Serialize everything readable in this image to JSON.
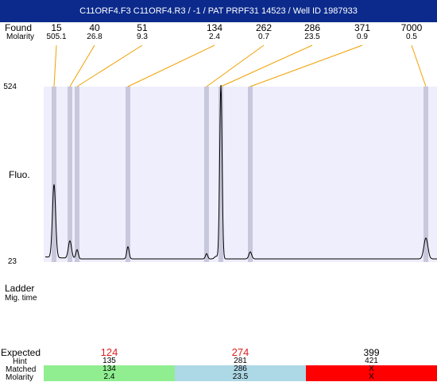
{
  "title": "C11ORF4.F3  C11ORF4.R3 / -1 / PAT PRPF31 14523 / Well ID 1987933",
  "found_label": "Found",
  "molarity_label": "Molarity",
  "fluo_label": "Fluo.",
  "ladder_label": "Ladder",
  "mig_time_label": "Mig. time",
  "expected_label": "Expected",
  "hint_label": "Hint",
  "matched_label": "Matched",
  "molarity_bottom_label": "Molarity",
  "colors": {
    "title_bg": "#0b2a8c",
    "plot_bg": "#eeeefc",
    "peak_band": "#c8c8dc",
    "leader": "#f0a000",
    "green": "#90ee90",
    "blue": "#add8e6",
    "red": "#ff0000"
  },
  "chart_data": {
    "type": "line",
    "ylabel": "Fluo.",
    "ylim": [
      23,
      524
    ],
    "y_ticks": [
      "524",
      "23"
    ],
    "peaks": [
      {
        "size": "15",
        "molarity": "505.1"
      },
      {
        "size": "40",
        "molarity": "26.8"
      },
      {
        "size": "51",
        "molarity": "9.3"
      },
      {
        "size": "134",
        "molarity": "2.4"
      },
      {
        "size": "262",
        "molarity": "0.7"
      },
      {
        "size": "286",
        "molarity": "23.5"
      },
      {
        "size": "371",
        "molarity": "0.9"
      },
      {
        "size": "7000",
        "molarity": "0.5"
      }
    ]
  },
  "expected": [
    {
      "size": "124",
      "hint": "135",
      "matched": "134",
      "molarity": "2.4",
      "color": "#90ee90"
    },
    {
      "size": "274",
      "hint": "281",
      "matched": "286",
      "molarity": "23.5",
      "color": "#add8e6"
    },
    {
      "size": "399",
      "hint": "421",
      "matched": "X",
      "molarity": "X",
      "color": "#ff0000"
    }
  ]
}
